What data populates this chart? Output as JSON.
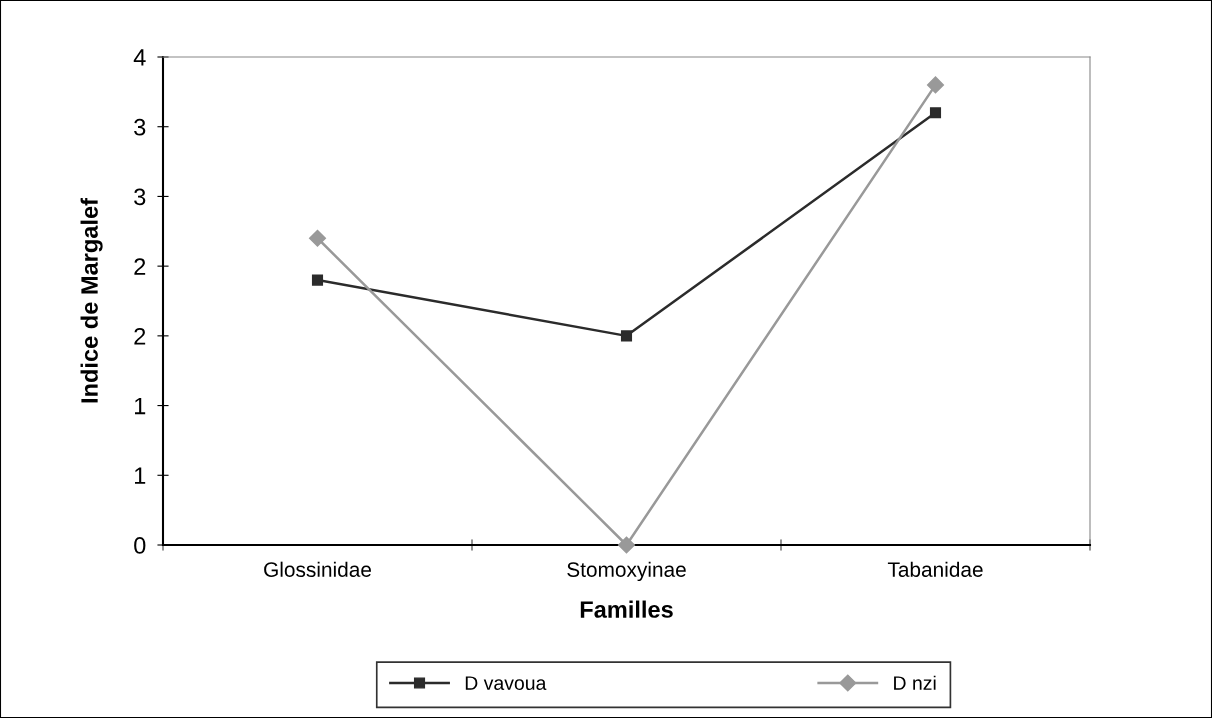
{
  "chart_data": {
    "type": "line",
    "xlabel": "Familles",
    "ylabel": "Indice de Margalef",
    "categories": [
      "Glossinidae",
      "Stomoxyinae",
      "Tabanidae"
    ],
    "series": [
      {
        "name": "D vavoua",
        "color": "#2b2b2b",
        "marker": "square",
        "values": [
          1.9,
          1.5,
          3.1
        ]
      },
      {
        "name": "D nzi",
        "color": "#999999",
        "marker": "diamond",
        "values": [
          2.2,
          0,
          3.3
        ]
      }
    ],
    "ylim": [
      0,
      3.5
    ],
    "yticks": [
      0,
      {
        "value": 0.5,
        "label": "1"
      },
      1,
      {
        "value": 1.5,
        "label": "2"
      },
      2,
      {
        "value": 2.5,
        "label": "3"
      },
      3,
      {
        "value": 3.5,
        "label": "4"
      }
    ],
    "grid": false,
    "legend": "bottom",
    "line_style": "solid"
  }
}
